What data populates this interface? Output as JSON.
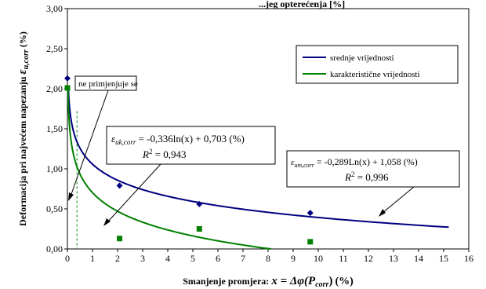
{
  "chart_data": {
    "type": "scatter",
    "title_fragment": "...jeg opterećenja [%]",
    "xlabel_text": "Smanjenje promjera:",
    "xlabel_formula": "x = Δφ(P",
    "xlabel_formula_sub": "corr",
    "xlabel_formula_end": ")",
    "xlabel_unit": "(%)",
    "ylabel_text": "Deformacija pri najvećem napezanju",
    "ylabel_symbol": "ε",
    "ylabel_sub": "u,corr",
    "ylabel_unit": "(%)",
    "xlim": [
      0,
      16
    ],
    "ylim": [
      0,
      3.0
    ],
    "x_ticks": [
      "0",
      "1",
      "2",
      "3",
      "4",
      "5",
      "6",
      "7",
      "8",
      "9",
      "10",
      "11",
      "12",
      "13",
      "14",
      "15",
      "16"
    ],
    "y_ticks": [
      "0,00",
      "0,50",
      "1,00",
      "1,50",
      "2,00",
      "2,50",
      "3,00"
    ],
    "series": [
      {
        "name": "srednje vrijednosti",
        "color": "#000080",
        "marker": "diamond",
        "points": [
          [
            0,
            2.13
          ],
          [
            2.08,
            0.79
          ],
          [
            5.26,
            0.56
          ],
          [
            9.68,
            0.45
          ]
        ],
        "fit": {
          "a": -0.289,
          "b": 1.058,
          "x_range": [
            0.04,
            15.2
          ]
        }
      },
      {
        "name": "karakteristične vrijednosti",
        "color": "#008000",
        "marker": "square",
        "points": [
          [
            0,
            2.01
          ],
          [
            2.08,
            0.13
          ],
          [
            5.26,
            0.25
          ],
          [
            9.68,
            0.09
          ]
        ],
        "fit": {
          "a": -0.336,
          "b": 0.703,
          "x_range": [
            0.02,
            8.12
          ]
        }
      }
    ],
    "legend": {
      "position": "top-right"
    },
    "vline_x": 0.38,
    "annotations": {
      "note": "ne primjenjuje se",
      "eq_char_lhs": "ε",
      "eq_char_sub": "uk,corr",
      "eq_char_rhs": " = -0,336ln(x) + 0,703 (%)",
      "eq_char_r2": "R",
      "eq_char_r2_val": " = 0,943",
      "eq_mean_lhs": "ε",
      "eq_mean_sub": "um,corr",
      "eq_mean_rhs": " = -0,289Ln(x) + 1,058 (%)",
      "eq_mean_r2": "R",
      "eq_mean_r2_val": " = 0,996",
      "sup2": "2"
    }
  }
}
